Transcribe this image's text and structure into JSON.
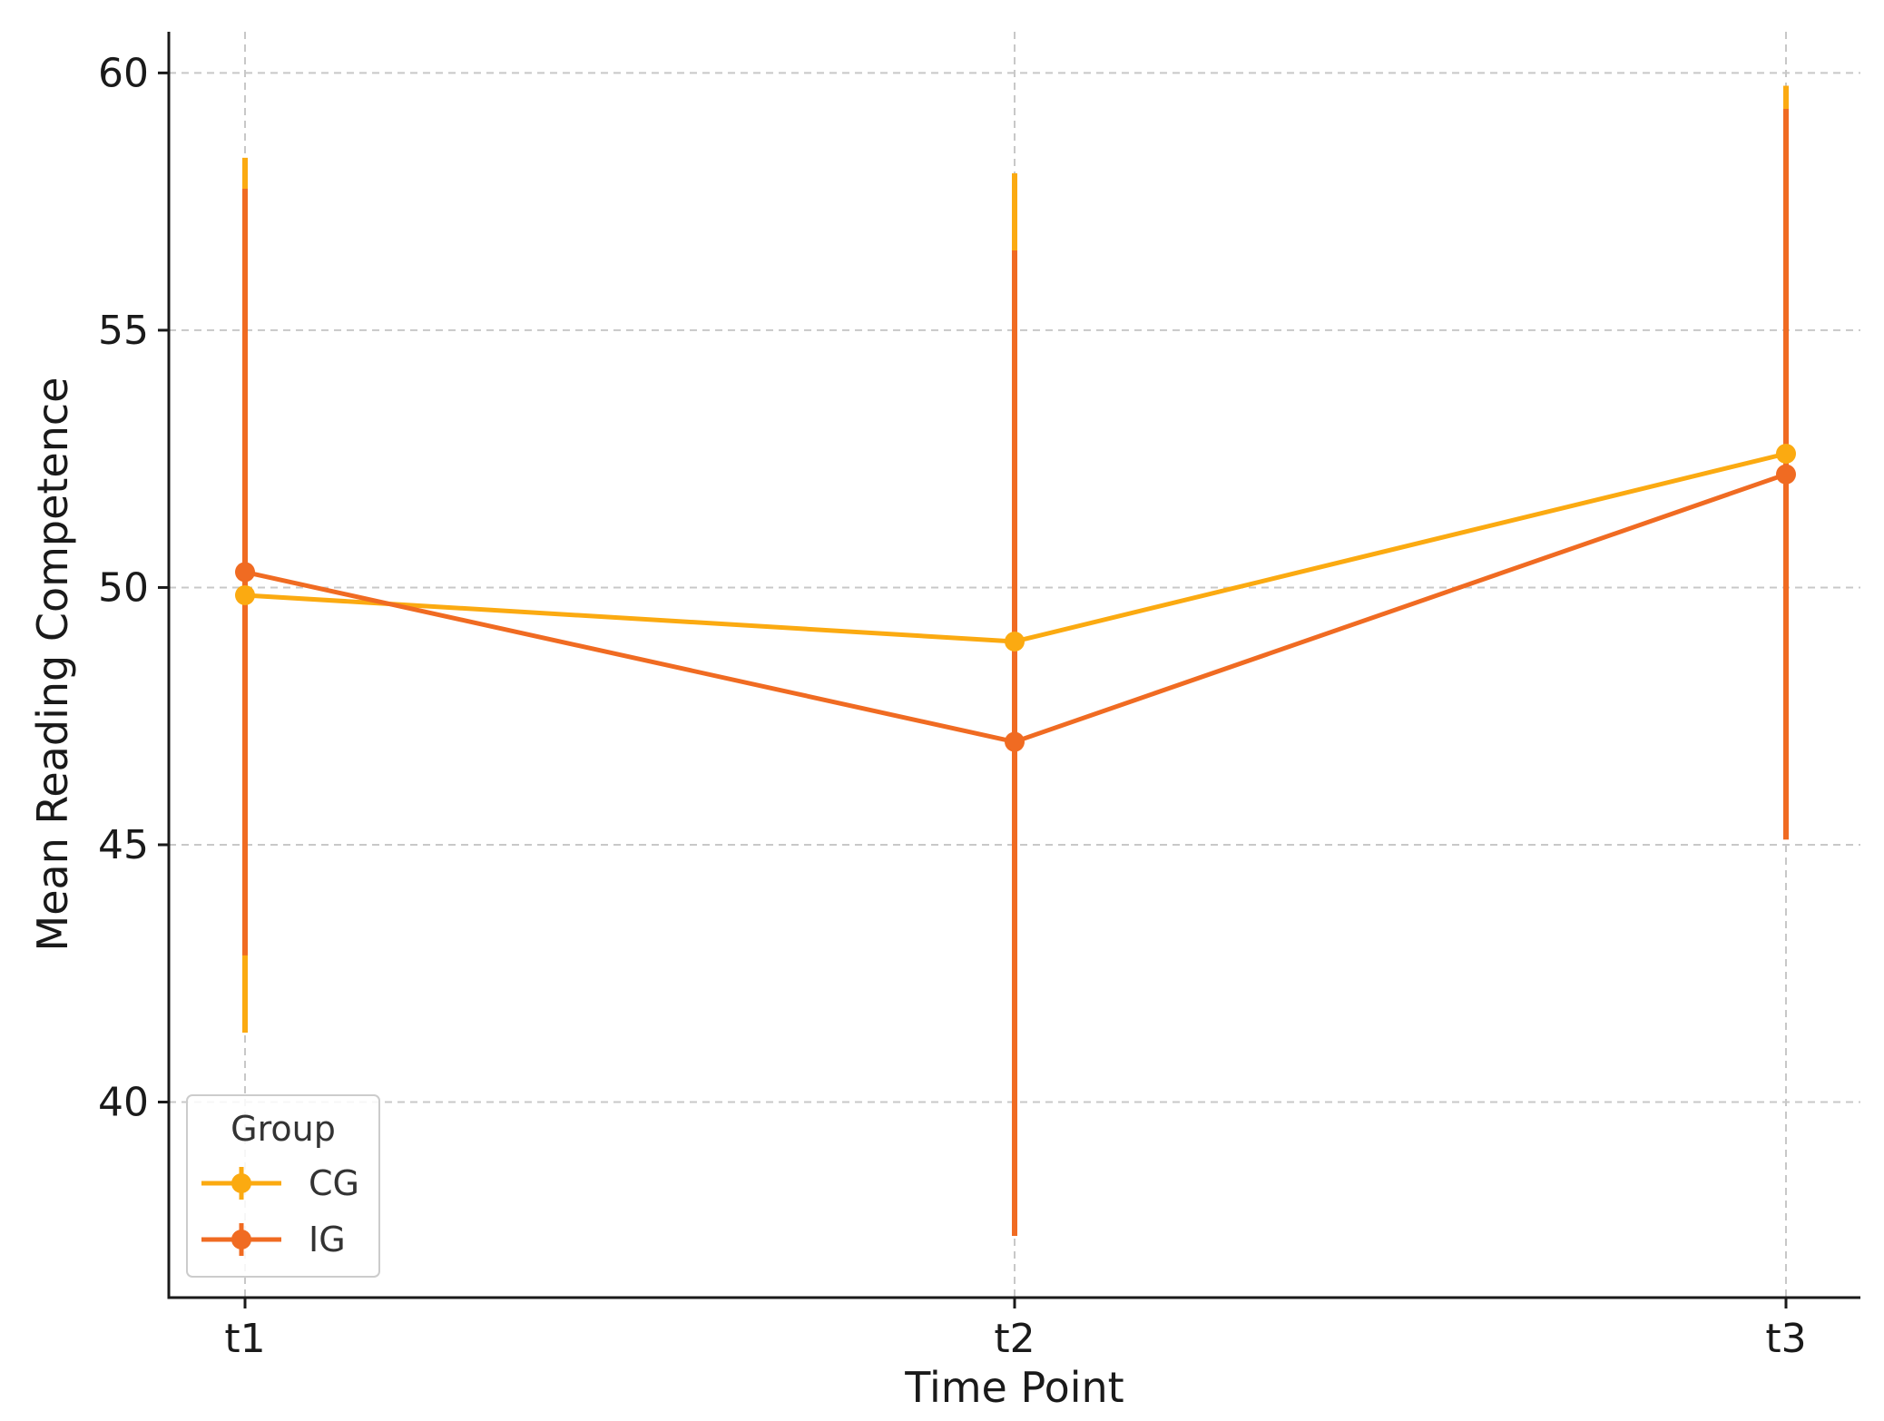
{
  "chart_data": {
    "type": "line",
    "title": "",
    "xlabel": "Time Point",
    "ylabel": "Mean Reading Competence",
    "categories": [
      "t1",
      "t2",
      "t3"
    ],
    "ylim": [
      36.2,
      60.8
    ],
    "yticks": [
      40,
      45,
      50,
      55,
      60
    ],
    "grid": true,
    "error_bars": true,
    "legend": {
      "title": "Group",
      "placement": "bottom-left"
    },
    "series": [
      {
        "name": "CG",
        "color": "#FBAA11",
        "values": [
          49.85,
          48.95,
          52.6
        ],
        "err_low": [
          41.35,
          null,
          45.45
        ],
        "err_high": [
          58.35,
          58.05,
          59.75
        ]
      },
      {
        "name": "IG",
        "color": "#F06B22",
        "values": [
          50.3,
          47.0,
          52.2
        ],
        "err_low": [
          42.85,
          37.4,
          45.1
        ],
        "err_high": [
          57.75,
          56.55,
          59.3
        ]
      }
    ]
  }
}
